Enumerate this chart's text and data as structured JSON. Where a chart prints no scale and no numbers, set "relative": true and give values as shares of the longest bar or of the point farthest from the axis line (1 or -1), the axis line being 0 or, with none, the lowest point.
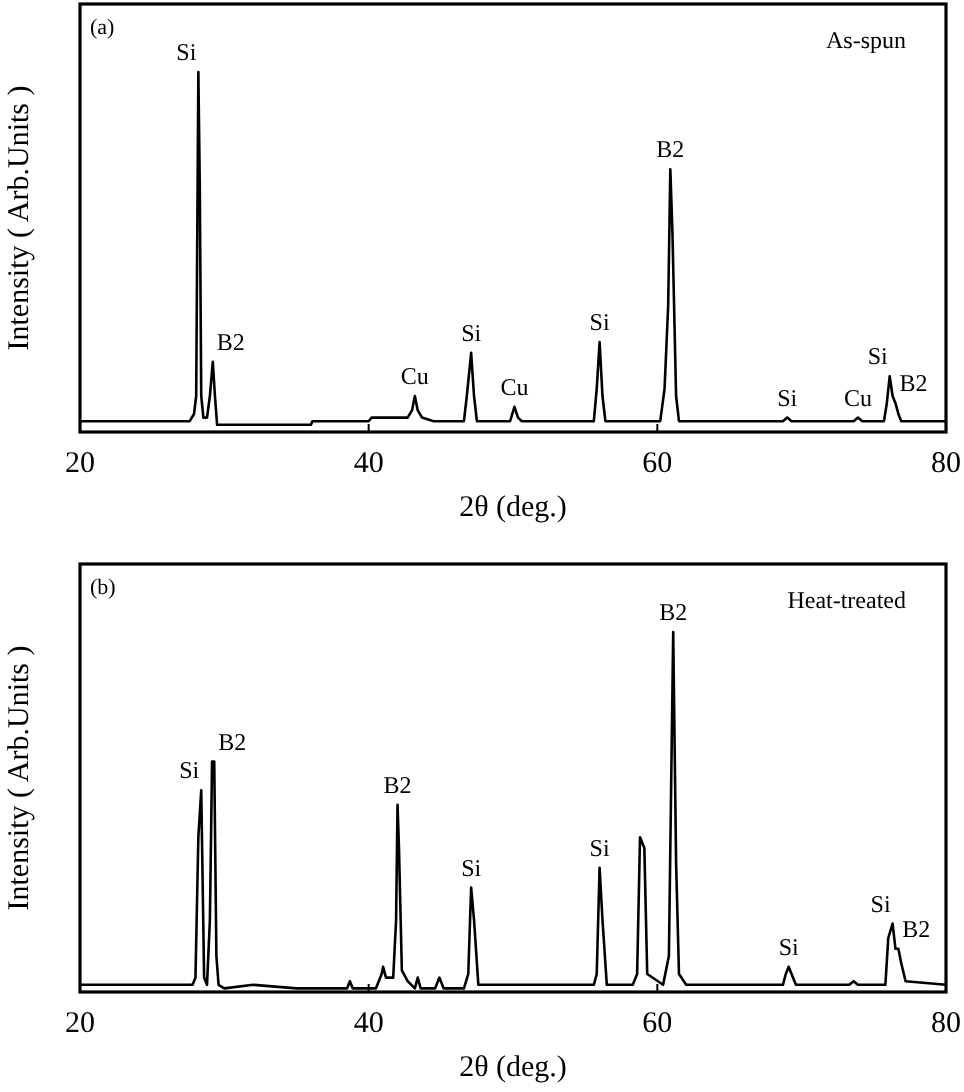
{
  "chart_data": [
    {
      "type": "line",
      "relative": true,
      "xlabel": "2θ (deg.)",
      "ylabel": "Intensity ( Arb.Units )",
      "xlim": [
        20,
        80
      ],
      "xticks": [
        20,
        40,
        60,
        80
      ],
      "grid": false,
      "marker": "none",
      "line_style": "solid",
      "series": [
        {
          "color": "#000000",
          "x": [
            20,
            27.6,
            27.9,
            28.05,
            28.2,
            28.3,
            28.4,
            28.55,
            28.8,
            29.0,
            29.2,
            29.35,
            29.5,
            30,
            36,
            36.1,
            40,
            40.2,
            42.7,
            43.0,
            43.2,
            43.4,
            43.7,
            44.5,
            46.6,
            46.8,
            47.1,
            47.3,
            47.5,
            49.8,
            50.1,
            50.35,
            50.6,
            55.6,
            55.8,
            56.0,
            56.2,
            56.4,
            60.2,
            60.5,
            60.75,
            60.9,
            61.05,
            61.3,
            61.5,
            68.7,
            69.0,
            69.3,
            73.6,
            73.9,
            74.2,
            75.7,
            75.9,
            76.1,
            76.3,
            76.5,
            76.7,
            76.9,
            80
          ],
          "values": [
            0.03,
            0.03,
            0.05,
            0.1,
            1.0,
            0.68,
            0.1,
            0.04,
            0.04,
            0.1,
            0.195,
            0.1,
            0.02,
            0.02,
            0.02,
            0.03,
            0.03,
            0.04,
            0.04,
            0.06,
            0.1,
            0.06,
            0.04,
            0.03,
            0.03,
            0.1,
            0.22,
            0.1,
            0.03,
            0.03,
            0.07,
            0.04,
            0.03,
            0.03,
            0.12,
            0.25,
            0.1,
            0.03,
            0.03,
            0.12,
            0.35,
            0.73,
            0.55,
            0.1,
            0.03,
            0.03,
            0.04,
            0.03,
            0.03,
            0.04,
            0.03,
            0.03,
            0.08,
            0.155,
            0.1,
            0.08,
            0.05,
            0.03,
            0.03
          ]
        }
      ],
      "annotations": [
        "(a)",
        "As-spun",
        {
          "text": "Si",
          "x": 28.2,
          "y": 1.0
        },
        {
          "text": "B2",
          "x": 29.2,
          "y": 0.195
        },
        {
          "text": "Cu",
          "x": 43.2,
          "y": 0.1
        },
        {
          "text": "Si",
          "x": 47.1,
          "y": 0.22
        },
        {
          "text": "Cu",
          "x": 50.1,
          "y": 0.07
        },
        {
          "text": "Si",
          "x": 56.0,
          "y": 0.25
        },
        {
          "text": "B2",
          "x": 60.9,
          "y": 0.73
        },
        {
          "text": "Si",
          "x": 69.0,
          "y": 0.04
        },
        {
          "text": "Cu",
          "x": 73.9,
          "y": 0.04
        },
        {
          "text": "Si",
          "x": 76.1,
          "y": 0.155
        },
        {
          "text": "B2",
          "x": 76.5,
          "y": 0.08
        }
      ]
    },
    {
      "type": "line",
      "relative": true,
      "xlabel": "2θ (deg.)",
      "ylabel": "Intensity ( Arb.Units )",
      "xlim": [
        20,
        80
      ],
      "xticks": [
        20,
        40,
        60,
        80
      ],
      "grid": false,
      "marker": "none",
      "line_style": "solid",
      "series": [
        {
          "color": "#000000",
          "x": [
            20,
            27.8,
            28.0,
            28.2,
            28.4,
            28.6,
            28.8,
            29.0,
            29.15,
            29.3,
            29.45,
            29.6,
            30,
            32,
            35,
            38.5,
            38.7,
            38.9,
            40.5,
            40.9,
            41.0,
            41.2,
            41.7,
            41.9,
            42.0,
            42.1,
            42.3,
            42.7,
            43.2,
            43.4,
            43.6,
            44.6,
            44.9,
            45.2,
            46.6,
            46.9,
            47.1,
            47.3,
            47.6,
            55.6,
            55.8,
            56.0,
            56.2,
            56.5,
            58.3,
            58.6,
            58.8,
            59.1,
            59.3,
            60.4,
            60.8,
            61.1,
            61.3,
            61.5,
            62,
            68.7,
            68.9,
            69.1,
            69.3,
            69.6,
            73.3,
            73.6,
            73.9,
            75.8,
            76.0,
            76.3,
            76.5,
            76.7,
            76.9,
            77.2,
            80
          ],
          "values": [
            0.02,
            0.02,
            0.04,
            0.43,
            0.56,
            0.04,
            0.02,
            0.2,
            0.64,
            0.64,
            0.1,
            0.02,
            0.01,
            0.02,
            0.01,
            0.01,
            0.03,
            0.01,
            0.01,
            0.05,
            0.07,
            0.04,
            0.04,
            0.2,
            0.52,
            0.4,
            0.06,
            0.03,
            0.01,
            0.04,
            0.01,
            0.01,
            0.04,
            0.01,
            0.01,
            0.05,
            0.29,
            0.2,
            0.02,
            0.02,
            0.05,
            0.345,
            0.2,
            0.02,
            0.02,
            0.05,
            0.43,
            0.4,
            0.05,
            0.02,
            0.1,
            1.0,
            0.36,
            0.05,
            0.02,
            0.02,
            0.05,
            0.07,
            0.05,
            0.02,
            0.02,
            0.03,
            0.02,
            0.02,
            0.15,
            0.19,
            0.12,
            0.12,
            0.08,
            0.03,
            0.02
          ]
        }
      ],
      "annotations": [
        "(b)",
        "Heat-treated",
        {
          "text": "Si",
          "x": 28.4,
          "y": 0.56
        },
        {
          "text": "B2",
          "x": 29.3,
          "y": 0.64
        },
        {
          "text": "B2",
          "x": 42.0,
          "y": 0.52
        },
        {
          "text": "Si",
          "x": 47.1,
          "y": 0.29
        },
        {
          "text": "Si",
          "x": 56.0,
          "y": 0.345
        },
        {
          "text": "B2",
          "x": 61.1,
          "y": 1.0
        },
        {
          "text": "Si",
          "x": 69.1,
          "y": 0.07
        },
        {
          "text": "Si",
          "x": 76.3,
          "y": 0.19
        },
        {
          "text": "B2",
          "x": 76.7,
          "y": 0.12
        }
      ]
    }
  ]
}
